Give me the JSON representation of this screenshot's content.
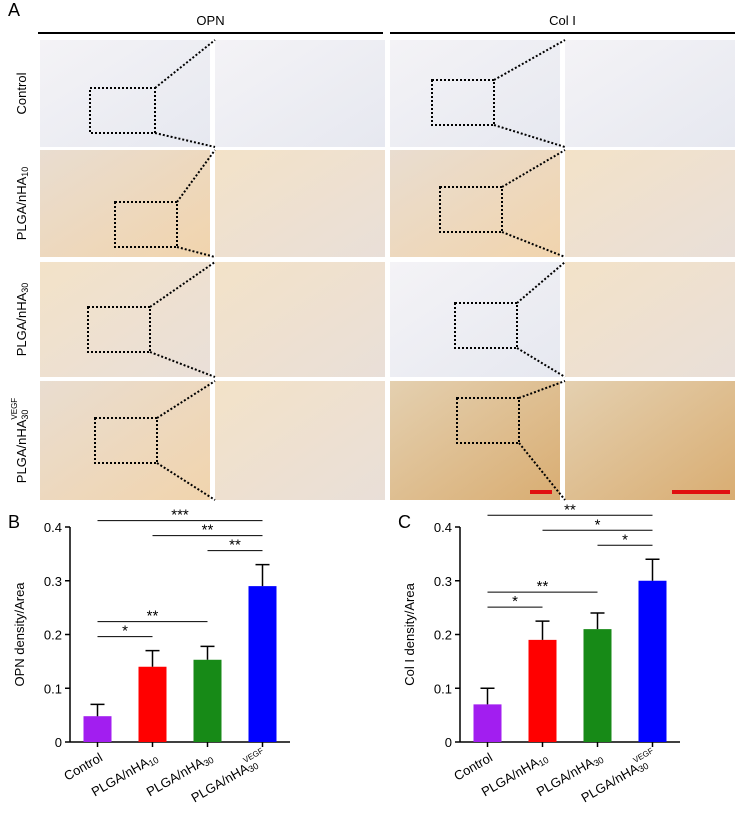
{
  "panel_a": {
    "label": "A",
    "columns": [
      "OPN",
      "Col I"
    ],
    "rows": [
      "Control",
      "PLGA/nHA10",
      "PLGA/nHA30",
      "PLGA/nHA30VEGF"
    ]
  },
  "chart_data": [
    {
      "type": "bar",
      "panel": "B",
      "y_label": "OPN density/Area",
      "categories": [
        "Control",
        "PLGA/nHA10",
        "PLGA/nHA30",
        "PLGA/nHA30VEGF"
      ],
      "values": [
        0.048,
        0.14,
        0.153,
        0.29
      ],
      "errors": [
        0.022,
        0.03,
        0.025,
        0.04
      ],
      "colors": [
        "#a21ef0",
        "#ff0000",
        "#178a17",
        "#0000ff"
      ],
      "ylim": [
        0,
        0.4
      ],
      "yticks": [
        0,
        0.1,
        0.2,
        0.3,
        0.4
      ],
      "significance": [
        {
          "from": 0,
          "to": 1,
          "label": "*"
        },
        {
          "from": 0,
          "to": 2,
          "label": "**"
        },
        {
          "from": 2,
          "to": 3,
          "label": "**"
        },
        {
          "from": 1,
          "to": 3,
          "label": "**"
        },
        {
          "from": 0,
          "to": 3,
          "label": "***"
        }
      ]
    },
    {
      "type": "bar",
      "panel": "C",
      "y_label": "Col I density/Area",
      "categories": [
        "Control",
        "PLGA/nHA10",
        "PLGA/nHA30",
        "PLGA/nHA30VEGF"
      ],
      "values": [
        0.07,
        0.19,
        0.21,
        0.3
      ],
      "errors": [
        0.03,
        0.035,
        0.03,
        0.04
      ],
      "colors": [
        "#a21ef0",
        "#ff0000",
        "#178a17",
        "#0000ff"
      ],
      "ylim": [
        0,
        0.4
      ],
      "yticks": [
        0,
        0.1,
        0.2,
        0.3,
        0.4
      ],
      "significance": [
        {
          "from": 0,
          "to": 1,
          "label": "*"
        },
        {
          "from": 0,
          "to": 2,
          "label": "**"
        },
        {
          "from": 2,
          "to": 3,
          "label": "*"
        },
        {
          "from": 1,
          "to": 3,
          "label": "*"
        },
        {
          "from": 0,
          "to": 3,
          "label": "**"
        }
      ]
    }
  ]
}
